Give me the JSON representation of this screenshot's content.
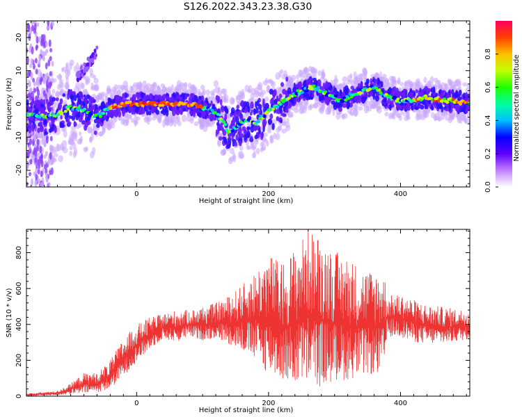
{
  "title": "S126.2022.343.23.38.G30",
  "chart_data": [
    {
      "type": "heatmap",
      "xlabel": "Height of straight line (km)",
      "ylabel": "Frequency (Hz)",
      "xlim": [
        -167,
        505
      ],
      "ylim": [
        -25,
        25
      ],
      "xticks": [
        0,
        200,
        400
      ],
      "yticks": [
        -20,
        -10,
        0,
        10,
        20
      ],
      "colorbar": {
        "label": "Normalized spectral amplitude",
        "range": [
          0,
          1
        ],
        "ticks": [
          "0.0",
          "0.2",
          "0.4",
          "0.6",
          "0.8"
        ],
        "colors": [
          "#ffffff",
          "#c080ff",
          "#6000ff",
          "#0000ff",
          "#00c0ff",
          "#00ffa0",
          "#20ff00",
          "#c0ff00",
          "#ffc000",
          "#ff4000",
          "#ff0060"
        ]
      },
      "ridge": {
        "x": [
          -165,
          -140,
          -120,
          -100,
          -80,
          -60,
          -40,
          -20,
          0,
          20,
          40,
          60,
          80,
          100,
          115,
          130,
          140,
          150,
          165,
          180,
          195,
          210,
          230,
          250,
          270,
          290,
          310,
          330,
          345,
          360,
          380,
          400,
          420,
          440,
          460,
          480,
          505
        ],
        "y": [
          -3,
          -4,
          -3,
          -1,
          -2,
          -4,
          -1,
          0,
          0,
          0,
          0,
          0,
          0,
          -1,
          -2,
          -5,
          -9,
          -7,
          -5,
          -6,
          -3,
          -1,
          2,
          4,
          5,
          3,
          1,
          3,
          4,
          5,
          2,
          1,
          1,
          2,
          1,
          1,
          0
        ]
      }
    },
    {
      "type": "line",
      "xlabel": "Height of straight line (km)",
      "ylabel": "SNR (10 * v/v)",
      "xlim": [
        -167,
        505
      ],
      "ylim": [
        0,
        930
      ],
      "xticks": [
        0,
        200,
        400
      ],
      "yticks": [
        0,
        200,
        400,
        600,
        800
      ],
      "series": [
        {
          "color": "#ee3333",
          "envelope": {
            "x": [
              -167,
              -120,
              -100,
              -80,
              -60,
              -40,
              -20,
              0,
              20,
              40,
              60,
              80,
              100,
              120,
              140,
              160,
              180,
              200,
              220,
              240,
              260,
              280,
              300,
              320,
              340,
              360,
              375,
              380,
              400,
              420,
              440,
              460,
              480,
              505
            ],
            "low": [
              0,
              5,
              10,
              15,
              20,
              40,
              110,
              190,
              260,
              320,
              300,
              330,
              310,
              320,
              290,
              250,
              200,
              120,
              90,
              60,
              70,
              50,
              80,
              90,
              110,
              120,
              130,
              330,
              330,
              300,
              290,
              290,
              300,
              320
            ],
            "high": [
              15,
              30,
              70,
              130,
              130,
              200,
              320,
              400,
              440,
              460,
              480,
              480,
              500,
              520,
              560,
              620,
              700,
              800,
              740,
              830,
              930,
              890,
              810,
              780,
              720,
              700,
              700,
              560,
              570,
              540,
              510,
              500,
              490,
              480
            ]
          }
        }
      ]
    }
  ]
}
